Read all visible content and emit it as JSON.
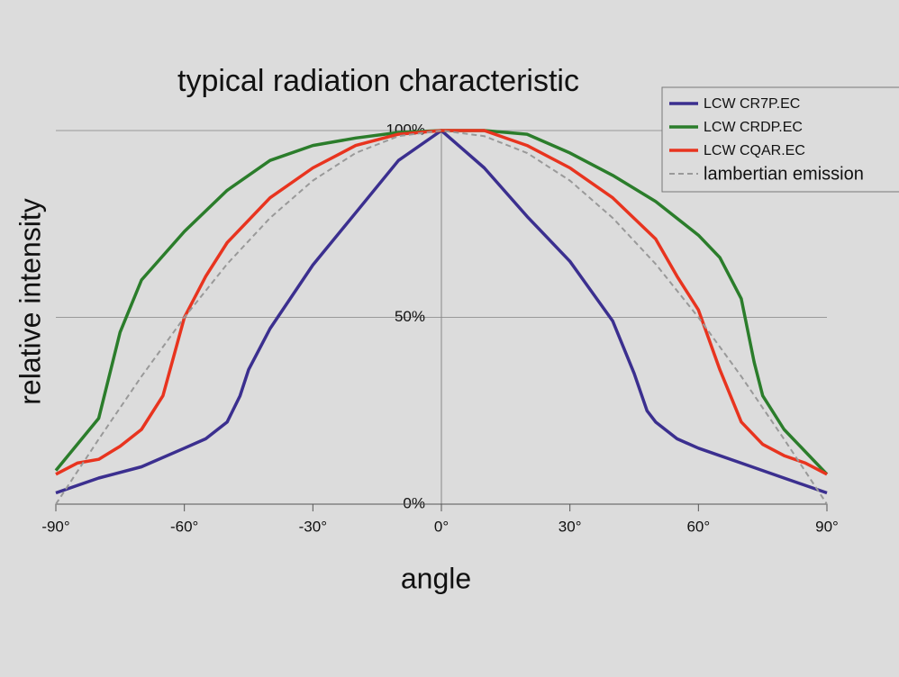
{
  "chart_data": {
    "type": "line",
    "title": "typical radiation characteristic",
    "x_label": "angle",
    "y_label": "relative intensity",
    "xlim": [
      -90,
      90
    ],
    "ylim": [
      0,
      100
    ],
    "xticks": [
      {
        "value": -90,
        "label": "-90°"
      },
      {
        "value": -60,
        "label": "-60°"
      },
      {
        "value": -30,
        "label": "-30°"
      },
      {
        "value": 0,
        "label": "0°"
      },
      {
        "value": 30,
        "label": "30°"
      },
      {
        "value": 60,
        "label": "60°"
      },
      {
        "value": 90,
        "label": "90°"
      }
    ],
    "yticks": [
      {
        "value": 0,
        "label": "0%"
      },
      {
        "value": 50,
        "label": "50%"
      },
      {
        "value": 100,
        "label": "100%"
      }
    ],
    "grid": true,
    "legend": "upper right",
    "series": [
      {
        "name": "LCW CR7P.EC",
        "color": "#3b2f8f",
        "style": "solid",
        "x": [
          -90,
          -80,
          -70,
          -60,
          -55,
          -50,
          -47,
          -45,
          -40,
          -30,
          -20,
          -10,
          0,
          10,
          20,
          30,
          40,
          45,
          48,
          50,
          55,
          60,
          70,
          80,
          90
        ],
        "values": [
          3,
          7,
          10,
          15,
          17.5,
          22,
          29,
          36,
          47,
          64,
          78,
          92,
          100,
          90,
          77,
          65,
          49,
          35,
          25,
          22,
          17.5,
          15,
          11,
          7,
          3
        ]
      },
      {
        "name": "LCW CRDP.EC",
        "color": "#2b7d2b",
        "style": "solid",
        "x": [
          -90,
          -80,
          -75,
          -70,
          -60,
          -50,
          -40,
          -30,
          -20,
          -10,
          0,
          10,
          20,
          30,
          40,
          50,
          60,
          65,
          70,
          73,
          75,
          80,
          90
        ],
        "values": [
          9,
          23,
          46,
          60,
          73,
          84,
          92,
          96,
          98,
          99.5,
          100,
          100,
          99,
          94,
          88,
          81,
          72,
          66,
          55,
          38,
          29,
          20,
          8
        ]
      },
      {
        "name": "LCW CQAR.EC",
        "color": "#e8341f",
        "style": "solid",
        "x": [
          -90,
          -85,
          -80,
          -75,
          -70,
          -65,
          -60,
          -55,
          -50,
          -40,
          -30,
          -20,
          -10,
          0,
          10,
          20,
          30,
          40,
          50,
          55,
          60,
          65,
          70,
          75,
          80,
          85,
          90
        ],
        "values": [
          8,
          11,
          12,
          15.5,
          20,
          29,
          50,
          61,
          70,
          82,
          90,
          96,
          99,
          100,
          100,
          96,
          90,
          82,
          71,
          61,
          52,
          36,
          22,
          16,
          13,
          11,
          8
        ]
      },
      {
        "name": "lambertian emission",
        "color": "#999999",
        "style": "dashed",
        "x": [
          -90,
          -80,
          -70,
          -60,
          -50,
          -40,
          -30,
          -20,
          -10,
          0,
          10,
          20,
          30,
          40,
          50,
          60,
          70,
          80,
          90
        ],
        "values": [
          0,
          17.4,
          34.2,
          50,
          64.3,
          76.6,
          86.6,
          94,
          98.5,
          100,
          98.5,
          94,
          86.6,
          76.6,
          64.3,
          50,
          34.2,
          17.4,
          0
        ]
      }
    ]
  }
}
